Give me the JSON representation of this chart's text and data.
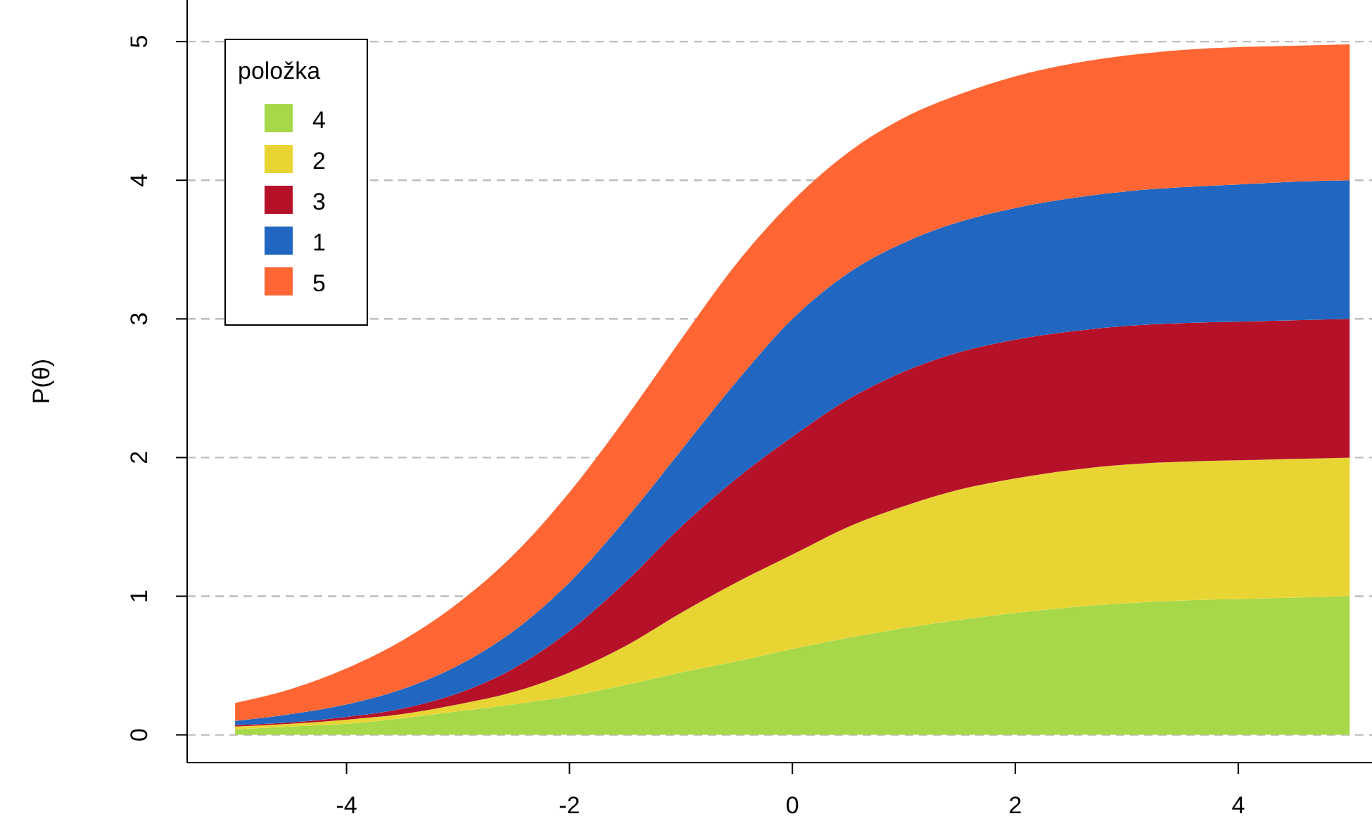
{
  "chart_data": {
    "type": "area",
    "ylabel": "P(θ)",
    "legend_title": "položka",
    "stacked": true,
    "grid": "y",
    "legend": "top left",
    "x": [
      -5,
      -4.5,
      -4,
      -3.5,
      -3,
      -2.5,
      -2,
      -1.5,
      -1,
      -0.5,
      0,
      0.5,
      1,
      1.5,
      2,
      2.5,
      3,
      3.5,
      4,
      4.5,
      5
    ],
    "xlim": [
      -5.43,
      5.2
    ],
    "ylim": [
      -0.2,
      5.3
    ],
    "xticks": [
      -4,
      -2,
      0,
      2,
      4
    ],
    "yticks": [
      0,
      1,
      2,
      3,
      4,
      5
    ],
    "series": [
      {
        "name": "4",
        "color": "#a6d84a",
        "values": [
          0.04,
          0.06,
          0.08,
          0.12,
          0.17,
          0.22,
          0.28,
          0.36,
          0.45,
          0.53,
          0.62,
          0.7,
          0.77,
          0.83,
          0.88,
          0.92,
          0.95,
          0.97,
          0.98,
          0.99,
          1.0
        ]
      },
      {
        "name": "2",
        "color": "#e8d534",
        "values": [
          0.02,
          0.02,
          0.03,
          0.03,
          0.05,
          0.09,
          0.17,
          0.28,
          0.43,
          0.57,
          0.68,
          0.8,
          0.88,
          0.94,
          0.97,
          0.99,
          1.0,
          1.0,
          1.0,
          1.0,
          1.0
        ]
      },
      {
        "name": "3",
        "color": "#b5122a",
        "values": [
          0.01,
          0.01,
          0.02,
          0.04,
          0.08,
          0.17,
          0.3,
          0.46,
          0.62,
          0.75,
          0.85,
          0.92,
          0.97,
          0.99,
          1.0,
          1.0,
          1.0,
          1.0,
          1.0,
          1.0,
          1.0
        ]
      },
      {
        "name": "1",
        "color": "#2166c0",
        "values": [
          0.03,
          0.06,
          0.09,
          0.14,
          0.2,
          0.27,
          0.35,
          0.45,
          0.55,
          0.7,
          0.85,
          0.91,
          0.93,
          0.94,
          0.95,
          0.96,
          0.97,
          0.98,
          0.99,
          1.0,
          1.0
        ]
      },
      {
        "name": "5",
        "color": "#ff6633",
        "values": [
          0.13,
          0.18,
          0.26,
          0.35,
          0.45,
          0.55,
          0.65,
          0.73,
          0.8,
          0.85,
          0.85,
          0.87,
          0.9,
          0.92,
          0.95,
          0.97,
          0.98,
          0.99,
          0.99,
          0.98,
          0.98
        ]
      }
    ]
  }
}
